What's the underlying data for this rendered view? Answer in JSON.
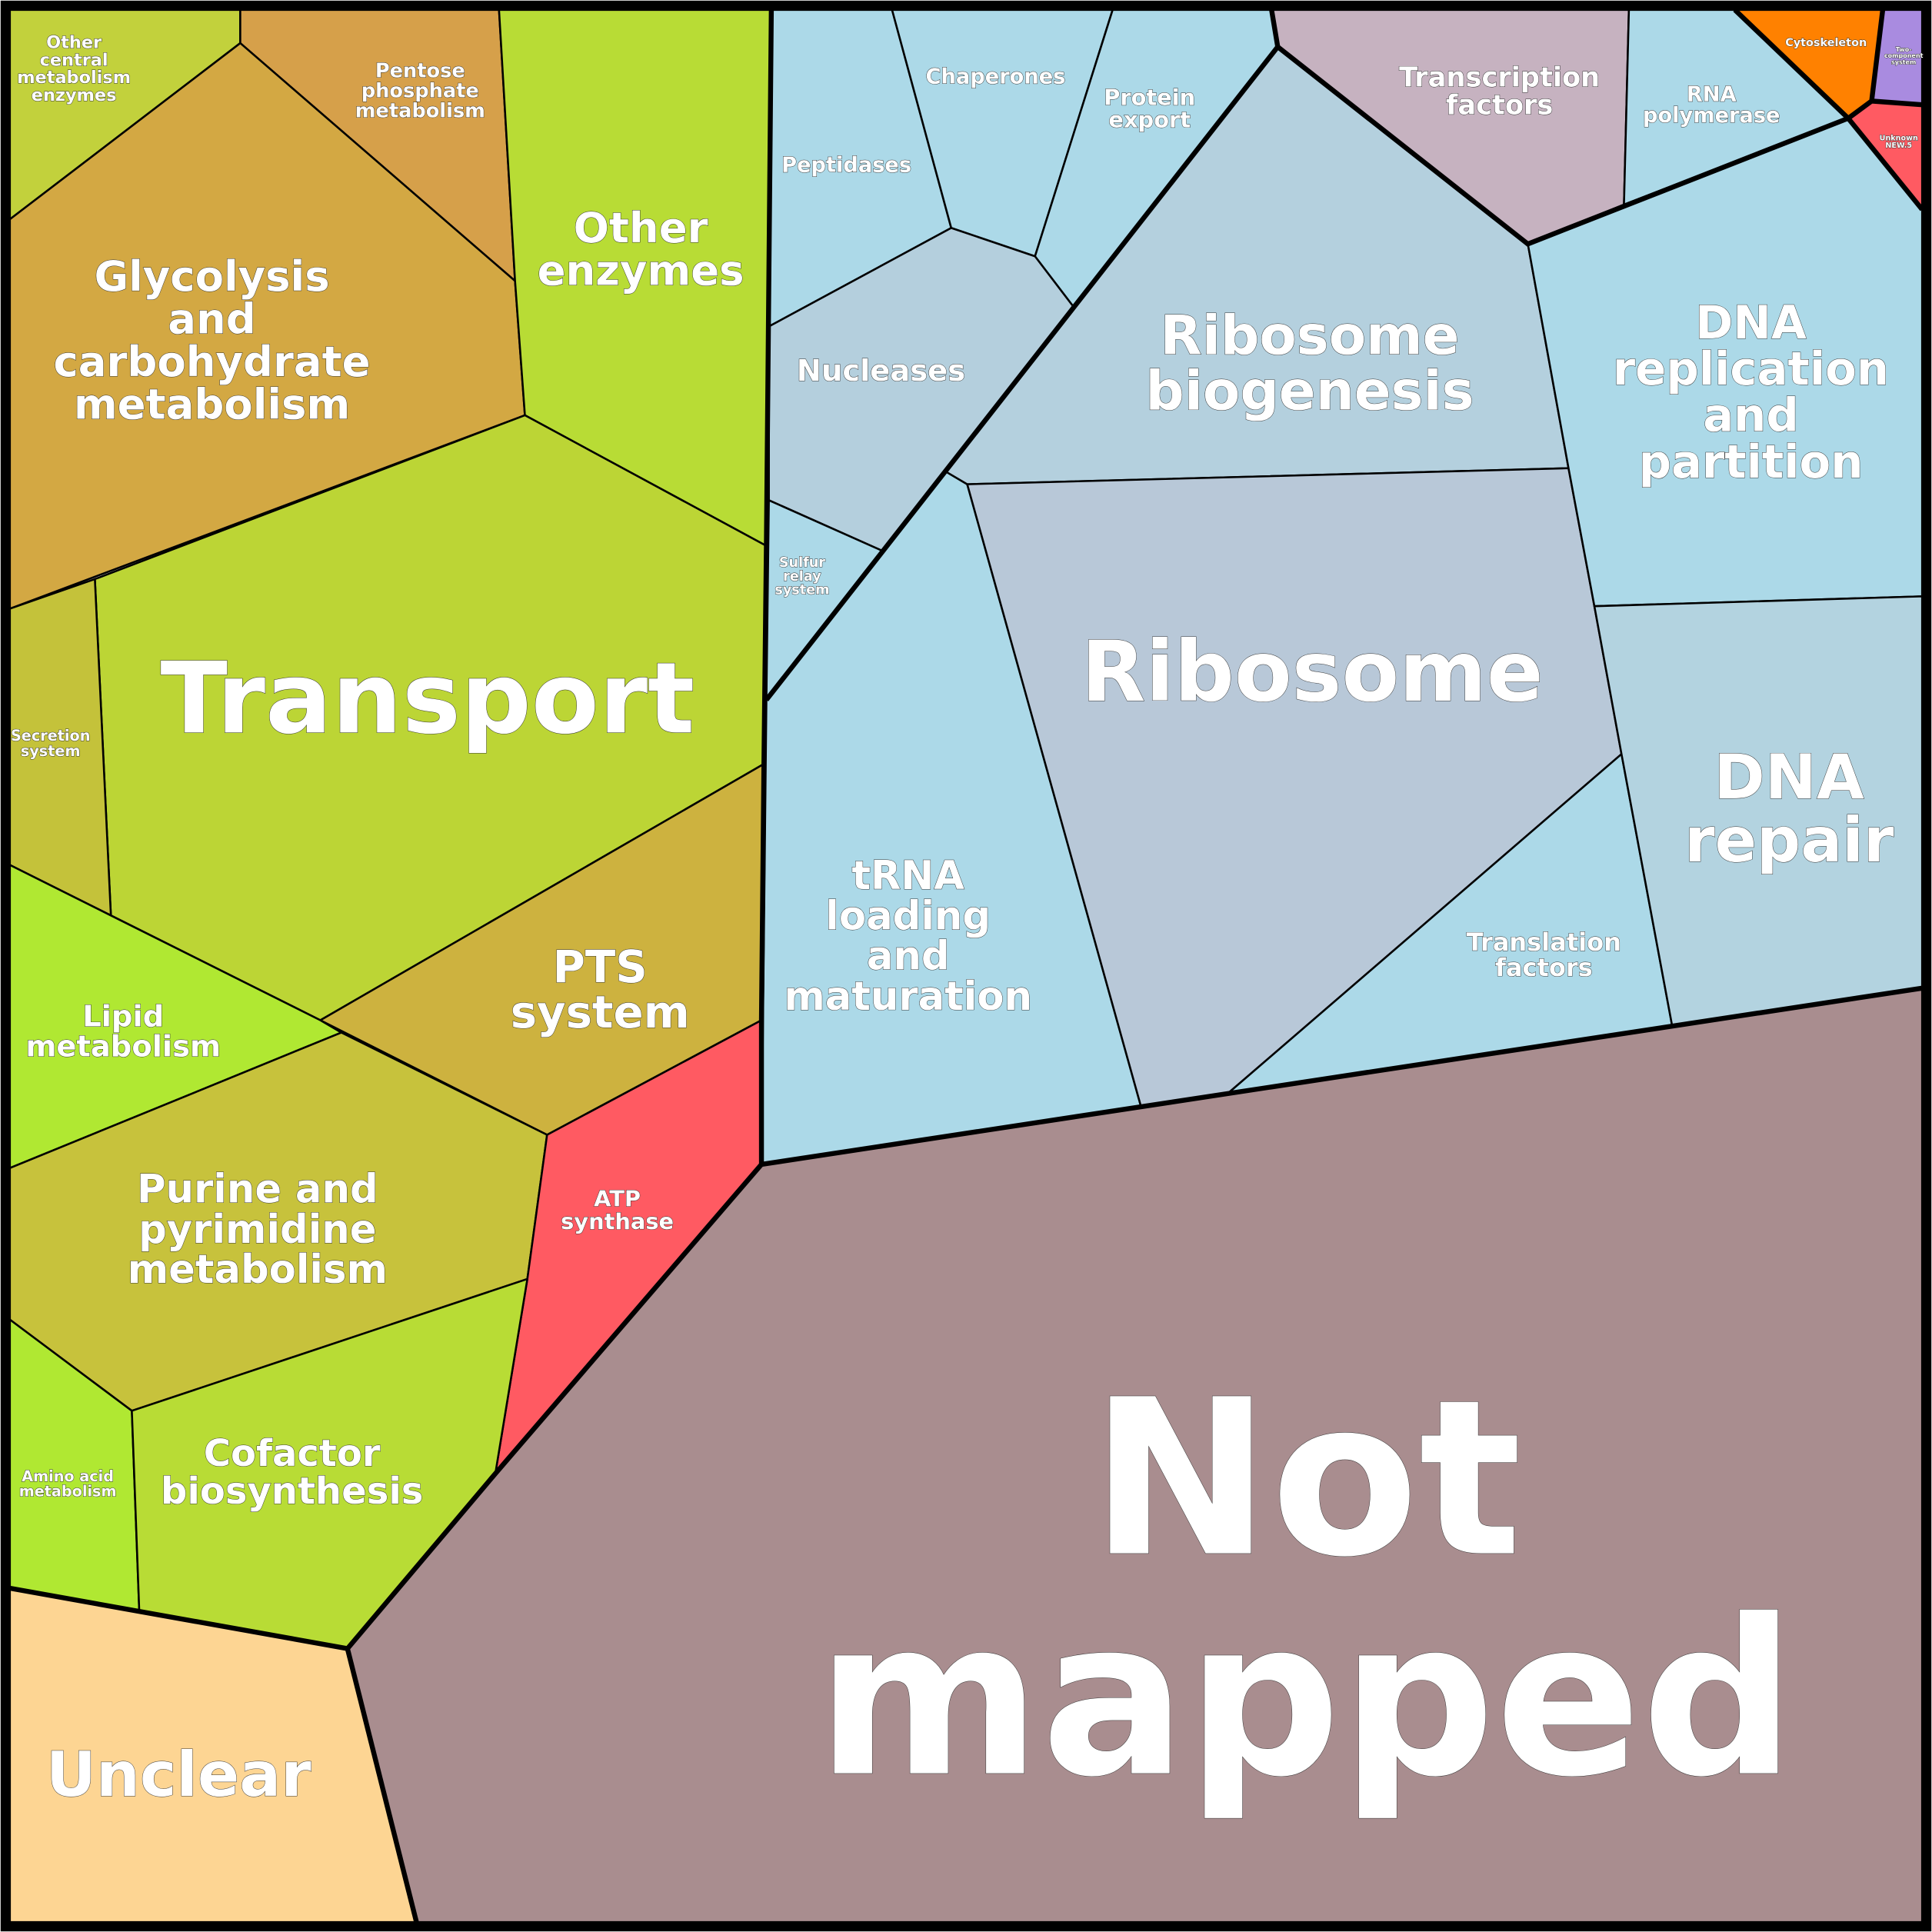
{
  "cells": [
    {
      "label": [
        "Other",
        "central",
        "metabolism",
        "enzymes"
      ]
    },
    {
      "label": [
        "Pentose",
        "phosphate",
        "metabolism"
      ]
    },
    {
      "label": [
        "Glycolysis",
        "and",
        "carbohydrate",
        "metabolism"
      ]
    },
    {
      "label": [
        "Other",
        "enzymes"
      ]
    },
    {
      "label": [
        "Transport"
      ]
    },
    {
      "label": [
        "Secretion",
        "system"
      ]
    },
    {
      "label": [
        "PTS",
        "system"
      ]
    },
    {
      "label": [
        "Lipid",
        "metabolism"
      ]
    },
    {
      "label": [
        "Purine and",
        "pyrimidine",
        "metabolism"
      ]
    },
    {
      "label": [
        "ATP",
        "synthase"
      ]
    },
    {
      "label": [
        "Amino acid",
        "metabolism"
      ]
    },
    {
      "label": [
        "Cofactor",
        "biosynthesis"
      ]
    },
    {
      "label": [
        "Unclear"
      ]
    },
    {
      "label": [
        "Not",
        "mapped"
      ]
    },
    {
      "label": [
        "Peptidases"
      ]
    },
    {
      "label": [
        "Chaperones"
      ]
    },
    {
      "label": [
        "Protein",
        "export"
      ]
    },
    {
      "label": [
        "Nucleases"
      ]
    },
    {
      "label": [
        "Sulfur",
        "relay",
        "system"
      ]
    },
    {
      "label": [
        "tRNA",
        "loading",
        "and",
        "maturation"
      ]
    },
    {
      "label": [
        "Ribosome",
        "biogenesis"
      ]
    },
    {
      "label": [
        "Ribosome"
      ]
    },
    {
      "label": [
        "Translation",
        "factors"
      ]
    },
    {
      "label": [
        "DNA",
        "replication",
        "and",
        "partition"
      ]
    },
    {
      "label": [
        "DNA",
        "repair"
      ]
    },
    {
      "label": [
        "Transcription",
        "factors"
      ]
    },
    {
      "label": [
        "RNA",
        "polymerase"
      ]
    },
    {
      "label": [
        "Cytoskeleton"
      ]
    },
    {
      "label": [
        "Two-",
        "component",
        "system"
      ]
    },
    {
      "label": [
        "Unknown",
        "NEW.5"
      ]
    }
  ]
}
